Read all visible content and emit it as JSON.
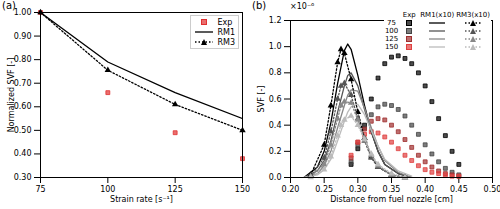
{
  "chart_data": [
    {
      "type": "line",
      "title": "(a)",
      "x_label": "Strain rate [s⁻¹]",
      "y_label": "Normalized SVF [-]",
      "xlim": [
        75,
        150
      ],
      "xticks": [
        75,
        100,
        125,
        150
      ],
      "ylim": [
        0.3,
        1
      ],
      "yticks": [
        0.3,
        0.4,
        0.5,
        0.6,
        0.7,
        0.8,
        0.9,
        1
      ],
      "legend": "upper right",
      "series": [
        {
          "name": "Exp",
          "type": "scatter",
          "marker": "square",
          "color": "#e03030",
          "x": [
            75,
            100,
            125,
            150
          ],
          "values": [
            1.0,
            0.66,
            0.49,
            0.38
          ]
        },
        {
          "name": "RM1",
          "type": "line",
          "line_style": "solid",
          "color": "#000000",
          "x": [
            75,
            100,
            125,
            150
          ],
          "values": [
            1.0,
            0.79,
            0.66,
            0.55
          ]
        },
        {
          "name": "RM3",
          "type": "line",
          "line_style": "dotted",
          "marker": "triangle",
          "color": "#000000",
          "x": [
            75,
            100,
            125,
            150
          ],
          "values": [
            1.0,
            0.755,
            0.61,
            0.5
          ]
        }
      ]
    },
    {
      "type": "line",
      "title": "(b)",
      "x_label": "Distance from fuel nozzle [cm]",
      "y_label": "SVF [-]",
      "annotation": "×10⁻⁶",
      "xlim": [
        0.2,
        0.5
      ],
      "xticks": [
        0.2,
        0.25,
        0.3,
        0.35,
        0.4,
        0.45,
        0.5
      ],
      "ylim": [
        0,
        1.2
      ],
      "yticks": [
        0,
        0.2,
        0.4,
        0.6,
        0.8,
        1,
        1.2
      ],
      "legend": "upper right",
      "series": [
        {
          "name": "75",
          "group": "Exp",
          "type": "scatter",
          "marker": "square",
          "color": "#000000",
          "x": [
            0.29,
            0.3,
            0.31,
            0.32,
            0.33,
            0.34,
            0.35,
            0.36,
            0.37,
            0.38,
            0.39,
            0.4,
            0.41,
            0.42,
            0.43,
            0.44,
            0.45
          ],
          "values": [
            0.1,
            0.22,
            0.4,
            0.6,
            0.76,
            0.87,
            0.92,
            0.93,
            0.91,
            0.87,
            0.8,
            0.7,
            0.58,
            0.45,
            0.32,
            0.2,
            0.1
          ]
        },
        {
          "name": "100",
          "group": "Exp",
          "type": "scatter",
          "marker": "square",
          "color": "#444444",
          "x": [
            0.29,
            0.3,
            0.31,
            0.32,
            0.33,
            0.34,
            0.35,
            0.36,
            0.37,
            0.38,
            0.39,
            0.4,
            0.41,
            0.42,
            0.43,
            0.44,
            0.45
          ],
          "values": [
            0.12,
            0.25,
            0.38,
            0.48,
            0.54,
            0.56,
            0.55,
            0.52,
            0.47,
            0.4,
            0.33,
            0.25,
            0.18,
            0.12,
            0.07,
            0.04,
            0.02
          ]
        },
        {
          "name": "125",
          "group": "Exp",
          "type": "scatter",
          "marker": "square",
          "color": "#a03030",
          "x": [
            0.29,
            0.3,
            0.31,
            0.32,
            0.33,
            0.34,
            0.35,
            0.36,
            0.37,
            0.38,
            0.39,
            0.4,
            0.41,
            0.42,
            0.43,
            0.44,
            0.45
          ],
          "values": [
            0.15,
            0.27,
            0.37,
            0.43,
            0.45,
            0.44,
            0.4,
            0.35,
            0.29,
            0.23,
            0.17,
            0.12,
            0.08,
            0.05,
            0.03,
            0.02,
            0.01
          ]
        },
        {
          "name": "150",
          "group": "Exp",
          "type": "scatter",
          "marker": "square",
          "color": "#e04040",
          "x": [
            0.29,
            0.3,
            0.31,
            0.32,
            0.33,
            0.34,
            0.35,
            0.36,
            0.37,
            0.38,
            0.39,
            0.4,
            0.41,
            0.42,
            0.43,
            0.44,
            0.45
          ],
          "values": [
            0.17,
            0.27,
            0.33,
            0.35,
            0.34,
            0.31,
            0.27,
            0.22,
            0.17,
            0.13,
            0.09,
            0.06,
            0.04,
            0.03,
            0.02,
            0.01,
            0.01
          ]
        },
        {
          "name": "75",
          "group": "RM1(x10)",
          "type": "line",
          "line_style": "solid",
          "color": "#000000",
          "x": [
            0.22,
            0.24,
            0.25,
            0.26,
            0.27,
            0.28,
            0.285,
            0.29,
            0.3,
            0.31,
            0.32,
            0.33,
            0.34,
            0.36,
            0.38
          ],
          "values": [
            0,
            0.08,
            0.2,
            0.42,
            0.72,
            0.97,
            1.02,
            0.98,
            0.78,
            0.55,
            0.35,
            0.2,
            0.1,
            0.03,
            0
          ]
        },
        {
          "name": "100",
          "group": "RM1(x10)",
          "type": "line",
          "line_style": "solid",
          "color": "#555555",
          "x": [
            0.22,
            0.24,
            0.25,
            0.26,
            0.27,
            0.28,
            0.285,
            0.29,
            0.3,
            0.31,
            0.32,
            0.33,
            0.34,
            0.36,
            0.38
          ],
          "values": [
            0,
            0.05,
            0.13,
            0.28,
            0.5,
            0.7,
            0.78,
            0.8,
            0.7,
            0.52,
            0.35,
            0.2,
            0.1,
            0.03,
            0
          ]
        },
        {
          "name": "125",
          "group": "RM1(x10)",
          "type": "line",
          "line_style": "solid",
          "color": "#888888",
          "x": [
            0.22,
            0.24,
            0.25,
            0.26,
            0.27,
            0.28,
            0.285,
            0.29,
            0.3,
            0.31,
            0.32,
            0.33,
            0.34,
            0.36,
            0.38
          ],
          "values": [
            0,
            0.03,
            0.09,
            0.2,
            0.38,
            0.55,
            0.63,
            0.67,
            0.66,
            0.53,
            0.38,
            0.24,
            0.13,
            0.04,
            0
          ]
        },
        {
          "name": "150",
          "group": "RM1(x10)",
          "type": "line",
          "line_style": "solid",
          "color": "#bbbbbb",
          "x": [
            0.22,
            0.24,
            0.25,
            0.26,
            0.27,
            0.28,
            0.285,
            0.29,
            0.3,
            0.31,
            0.32,
            0.33,
            0.34,
            0.36,
            0.38
          ],
          "values": [
            0,
            0.02,
            0.06,
            0.14,
            0.28,
            0.43,
            0.5,
            0.54,
            0.56,
            0.48,
            0.36,
            0.24,
            0.14,
            0.05,
            0.01
          ]
        },
        {
          "name": "75",
          "group": "RM3(x10)",
          "type": "line",
          "line_style": "dotted",
          "marker": "triangle",
          "color": "#000000",
          "x": [
            0.23,
            0.25,
            0.26,
            0.27,
            0.275,
            0.28,
            0.29,
            0.3,
            0.31,
            0.32,
            0.33,
            0.35,
            0.37
          ],
          "values": [
            0.02,
            0.25,
            0.55,
            0.88,
            0.98,
            0.95,
            0.75,
            0.5,
            0.3,
            0.16,
            0.08,
            0.02,
            0
          ]
        },
        {
          "name": "100",
          "group": "RM3(x10)",
          "type": "line",
          "line_style": "dotted",
          "marker": "triangle",
          "color": "#555555",
          "x": [
            0.23,
            0.25,
            0.26,
            0.27,
            0.275,
            0.28,
            0.29,
            0.3,
            0.31,
            0.32,
            0.33,
            0.35,
            0.37
          ],
          "values": [
            0.01,
            0.15,
            0.35,
            0.6,
            0.7,
            0.72,
            0.63,
            0.45,
            0.28,
            0.15,
            0.08,
            0.02,
            0
          ]
        },
        {
          "name": "125",
          "group": "RM3(x10)",
          "type": "line",
          "line_style": "dotted",
          "marker": "triangle",
          "color": "#888888",
          "x": [
            0.23,
            0.25,
            0.26,
            0.27,
            0.275,
            0.28,
            0.29,
            0.3,
            0.31,
            0.32,
            0.33,
            0.35,
            0.37
          ],
          "values": [
            0.01,
            0.1,
            0.25,
            0.45,
            0.55,
            0.58,
            0.57,
            0.44,
            0.3,
            0.17,
            0.09,
            0.02,
            0
          ]
        },
        {
          "name": "150",
          "group": "RM3(x10)",
          "type": "line",
          "line_style": "dotted",
          "marker": "triangle",
          "color": "#bbbbbb",
          "x": [
            0.23,
            0.25,
            0.26,
            0.27,
            0.275,
            0.28,
            0.29,
            0.3,
            0.31,
            0.32,
            0.33,
            0.35,
            0.37
          ],
          "values": [
            0,
            0.06,
            0.16,
            0.32,
            0.4,
            0.44,
            0.47,
            0.4,
            0.29,
            0.18,
            0.1,
            0.03,
            0
          ]
        }
      ]
    }
  ]
}
